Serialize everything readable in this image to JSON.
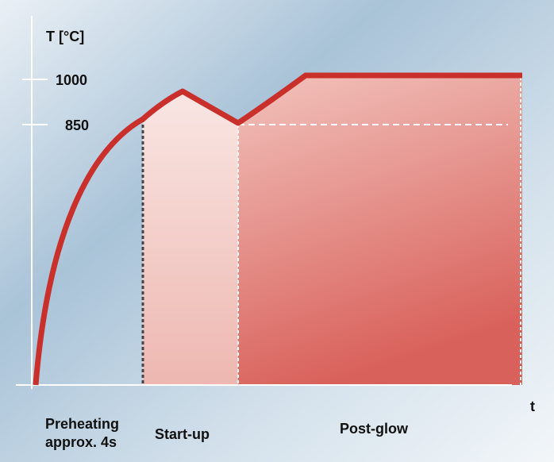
{
  "axis": {
    "y_label": "T [°C]",
    "x_label": "t",
    "ticks": [
      "1000",
      "850"
    ]
  },
  "phases": [
    {
      "label": [
        "Preheating",
        "approx. 4s"
      ]
    },
    {
      "label": [
        "Start-up"
      ]
    },
    {
      "label": [
        "Post-glow"
      ]
    }
  ]
}
